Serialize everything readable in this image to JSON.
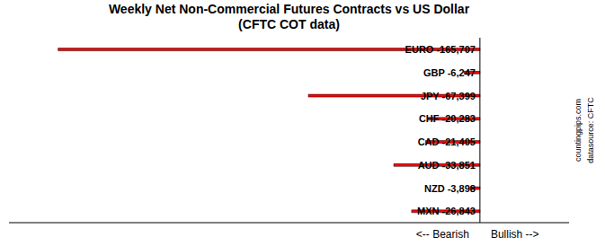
{
  "chart_data": {
    "type": "bar",
    "orientation": "horizontal",
    "title": "Weekly Net Non-Commercial Futures Contracts vs US Dollar\n(CFTC COT data)",
    "categories": [
      "EURO",
      "GBP",
      "JPY",
      "CHF",
      "CAD",
      "AUD",
      "NZD",
      "MXN"
    ],
    "values": [
      -165707,
      -6247,
      -67399,
      -20283,
      -21405,
      -33851,
      -3898,
      -26843
    ],
    "value_labels": [
      "EURO -165,707",
      "GBP -6,247",
      "JPY -67,399",
      "CHF -20,283",
      "CAD -21,405",
      "AUD -33,851",
      "NZD -3,898",
      "MXN -26,843"
    ],
    "color": "#FF0000",
    "xlim": [
      -185000,
      35000
    ],
    "tick_labels": false,
    "grid": false,
    "data_labels": true,
    "annotations": [
      "<-- Bearish",
      "Bullish -->",
      "countingpips.com",
      "datasource: CFTC"
    ]
  }
}
